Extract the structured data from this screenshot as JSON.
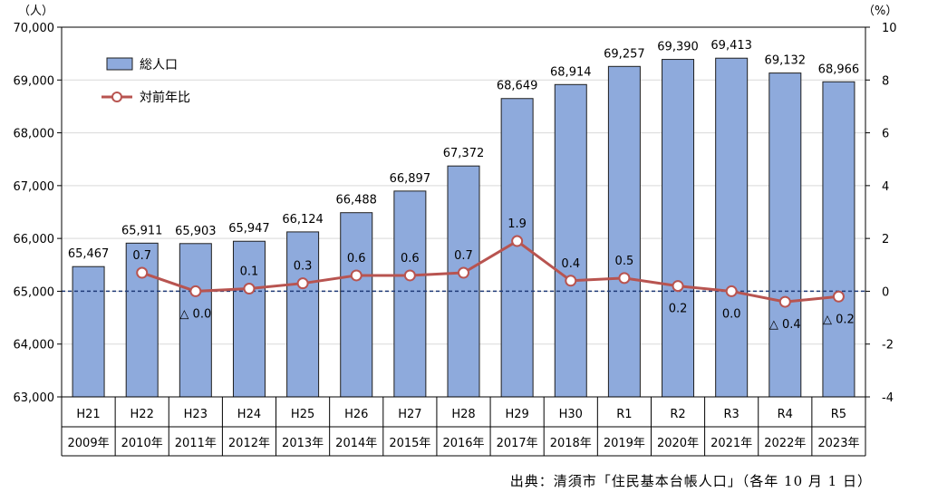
{
  "chart_data": {
    "type": "bar",
    "categories": [
      "H21",
      "H22",
      "H23",
      "H24",
      "H25",
      "H26",
      "H27",
      "H28",
      "H29",
      "H30",
      "R1",
      "R2",
      "R3",
      "R4",
      "R5"
    ],
    "categories_year": [
      "2009年",
      "2010年",
      "2011年",
      "2012年",
      "2013年",
      "2014年",
      "2015年",
      "2016年",
      "2017年",
      "2018年",
      "2019年",
      "2020年",
      "2021年",
      "2022年",
      "2023年"
    ],
    "series": [
      {
        "name": "総人口",
        "type": "bar",
        "axis": "left",
        "color": "#8eaadc",
        "values": [
          65467,
          65911,
          65903,
          65947,
          66124,
          66488,
          66897,
          67372,
          68649,
          68914,
          69257,
          69390,
          69413,
          69132,
          68966
        ],
        "labels": [
          "65,467",
          "65,911",
          "65,903",
          "65,947",
          "66,124",
          "66,488",
          "66,897",
          "67,372",
          "68,649",
          "68,914",
          "69,257",
          "69,390",
          "69,413",
          "69,132",
          "68,966"
        ]
      },
      {
        "name": "対前年比",
        "type": "line",
        "axis": "right",
        "color": "#b85450",
        "values": [
          null,
          0.7,
          0.0,
          0.1,
          0.3,
          0.6,
          0.6,
          0.7,
          1.9,
          0.4,
          0.5,
          0.2,
          0.0,
          -0.4,
          -0.2
        ],
        "labels": [
          "",
          "0.7",
          "△ 0.0",
          "0.1",
          "0.3",
          "0.6",
          "0.6",
          "0.7",
          "1.9",
          "0.4",
          "0.5",
          "0.2",
          "0.0",
          "△ 0.4",
          "△ 0.2"
        ]
      }
    ],
    "y_left": {
      "unit": "（人）",
      "min": 63000,
      "max": 70000,
      "ticks": [
        63000,
        64000,
        65000,
        66000,
        67000,
        68000,
        69000,
        70000
      ],
      "tick_labels": [
        "63,000",
        "64,000",
        "65,000",
        "66,000",
        "67,000",
        "68,000",
        "69,000",
        "70,000"
      ]
    },
    "y_right": {
      "unit": "（%）",
      "min": -4,
      "max": 10,
      "ticks": [
        -4,
        -2,
        0,
        2,
        4,
        6,
        8,
        10
      ],
      "tick_labels": [
        "-4",
        "-2",
        "0",
        "2",
        "4",
        "6",
        "8",
        "10"
      ]
    },
    "reference_line": 0,
    "legend_position": "top-left",
    "source_note": "出典：清須市「住民基本台帳人口」（各年 10 月 1 日）"
  }
}
